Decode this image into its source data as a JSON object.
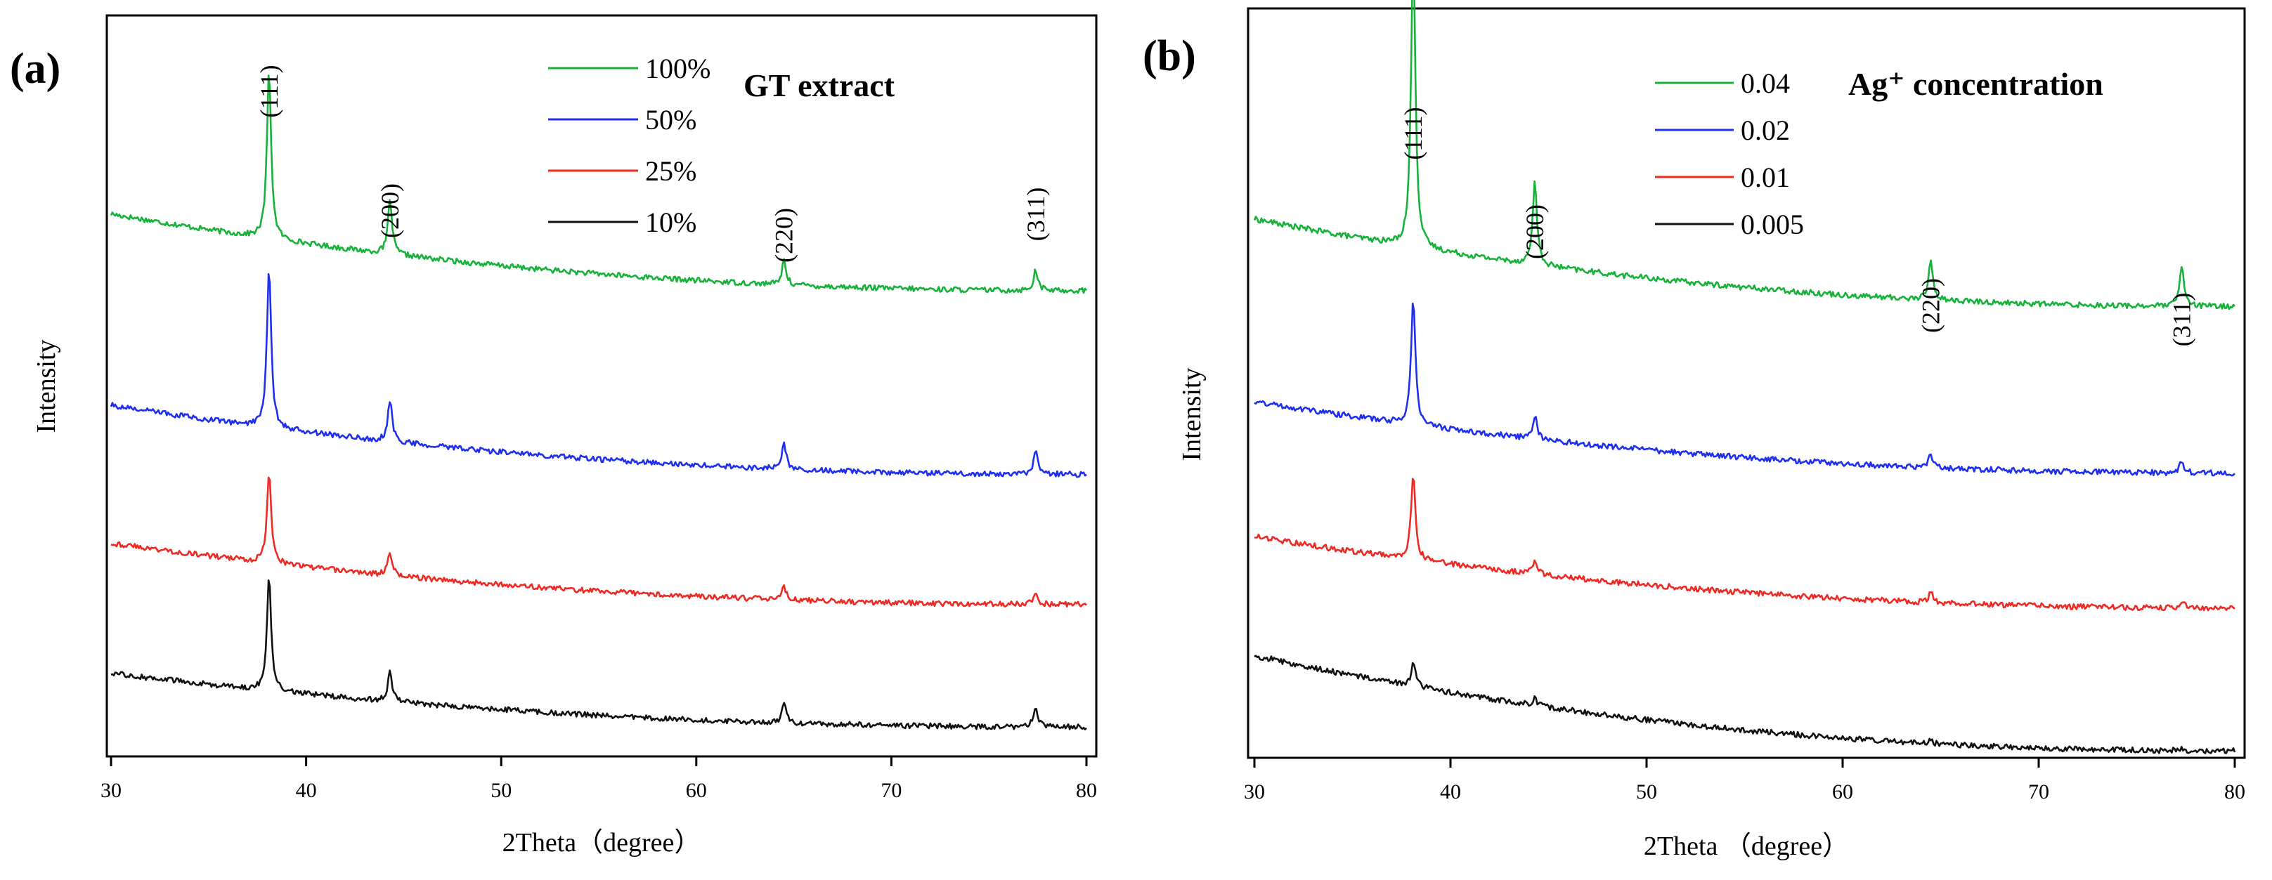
{
  "chart_data": [
    {
      "type": "line",
      "panel_label": "(a)",
      "xlabel": "2Theta（degree）",
      "ylabel": "Intensity",
      "xlim": [
        30,
        80
      ],
      "xticks": [
        30,
        40,
        50,
        60,
        70,
        80
      ],
      "y_ticks_shown": false,
      "legend_position": "top-right",
      "legend_title": "GT extract",
      "peaks": [
        {
          "label": "(111)",
          "x": 38.1
        },
        {
          "label": "(200)",
          "x": 44.3
        },
        {
          "label": "(220)",
          "x": 64.5
        },
        {
          "label": "(311)",
          "x": 77.4
        }
      ],
      "series": [
        {
          "name": "100%",
          "color": "#16b23a",
          "offset": 0.57,
          "bg_start": 0.1,
          "bg_end": 0.0,
          "peak_heights": [
            0.22,
            0.07,
            0.032,
            0.027
          ]
        },
        {
          "name": "50%",
          "color": "#1f2ff0",
          "offset": 0.33,
          "bg_start": 0.09,
          "bg_end": 0.0,
          "peak_heights": [
            0.21,
            0.055,
            0.033,
            0.029
          ]
        },
        {
          "name": "25%",
          "color": "#ee2a24",
          "offset": 0.16,
          "bg_start": 0.08,
          "bg_end": 0.0,
          "peak_heights": [
            0.12,
            0.03,
            0.017,
            0.014
          ]
        },
        {
          "name": "10%",
          "color": "#111111",
          "offset": 0.0,
          "bg_start": 0.07,
          "bg_end": 0.0,
          "peak_heights": [
            0.15,
            0.039,
            0.024,
            0.026
          ]
        }
      ]
    },
    {
      "type": "line",
      "panel_label": "(b)",
      "xlabel": "2Theta （degree）",
      "ylabel": "Intensity",
      "xlim": [
        30,
        80
      ],
      "xticks": [
        30,
        40,
        50,
        60,
        70,
        80
      ],
      "y_ticks_shown": false,
      "legend_position": "top-right",
      "legend_title": "Ag⁺ concentration",
      "peaks": [
        {
          "label": "(111)",
          "x": 38.1
        },
        {
          "label": "(200)",
          "x": 44.3
        },
        {
          "label": "(220)",
          "x": 64.5
        },
        {
          "label": "(311)",
          "x": 77.3
        }
      ],
      "series": [
        {
          "name": "0.04",
          "color": "#16b23a",
          "offset": 0.56,
          "bg_start": 0.11,
          "bg_end": 0.0,
          "peak_heights": [
            0.38,
            0.105,
            0.05,
            0.05
          ]
        },
        {
          "name": "0.02",
          "color": "#1f2ff0",
          "offset": 0.35,
          "bg_start": 0.09,
          "bg_end": 0.0,
          "peak_heights": [
            0.16,
            0.03,
            0.017,
            0.015
          ]
        },
        {
          "name": "0.01",
          "color": "#ee2a24",
          "offset": 0.18,
          "bg_start": 0.09,
          "bg_end": 0.0,
          "peak_heights": [
            0.11,
            0.018,
            0.013,
            0.01
          ]
        },
        {
          "name": "0.005",
          "color": "#111111",
          "offset": 0.0,
          "bg_start": 0.12,
          "bg_end": 0.0,
          "peak_heights": [
            0.03,
            0.01,
            0.004,
            0.003
          ]
        }
      ]
    }
  ]
}
